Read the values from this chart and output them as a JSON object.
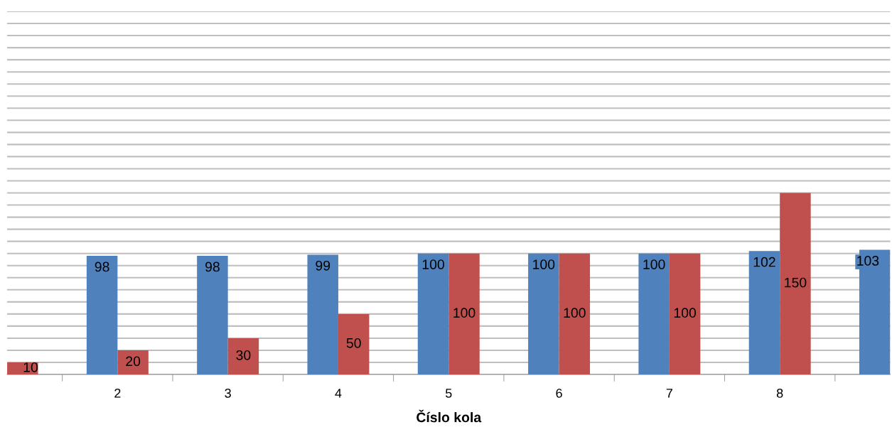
{
  "chart_data": {
    "type": "bar",
    "xlabel": "Číslo kola",
    "categories": [
      null,
      "2",
      "3",
      "4",
      "5",
      "6",
      "7",
      "8",
      null
    ],
    "series": [
      {
        "color": "#4f81bd",
        "values": [
          null,
          98,
          98,
          99,
          100,
          100,
          100,
          102,
          103
        ]
      },
      {
        "color": "#c0504d",
        "values": [
          10,
          20,
          30,
          50,
          100,
          100,
          100,
          150,
          null
        ]
      }
    ],
    "data_labels": true,
    "ylim": [
      0,
      300
    ],
    "yticks": [
      {
        "value": 0,
        "label": null
      },
      {
        "value": 10,
        "label": null
      },
      {
        "value": 20,
        "label": null
      },
      {
        "value": 30,
        "label": null
      },
      {
        "value": 40,
        "label": null
      },
      {
        "value": 50,
        "label": null
      },
      {
        "value": 60,
        "label": null
      },
      {
        "value": 70,
        "label": null
      },
      {
        "value": 80,
        "label": null
      },
      {
        "value": 90,
        "label": null
      },
      {
        "value": 100,
        "label": null
      },
      {
        "value": 110,
        "label": null
      },
      {
        "value": 120,
        "label": null
      },
      {
        "value": 130,
        "label": null
      },
      {
        "value": 140,
        "label": null
      },
      {
        "value": 150,
        "label": null
      },
      {
        "value": 160,
        "label": null
      },
      {
        "value": 170,
        "label": null
      },
      {
        "value": 180,
        "label": null
      },
      {
        "value": 190,
        "label": null
      },
      {
        "value": 200,
        "label": null
      },
      {
        "value": 210,
        "label": null
      },
      {
        "value": 220,
        "label": null
      },
      {
        "value": 230,
        "label": null
      },
      {
        "value": 240,
        "label": null
      },
      {
        "value": 250,
        "label": null
      },
      {
        "value": 260,
        "label": null
      },
      {
        "value": 270,
        "label": null
      },
      {
        "value": 280,
        "label": null
      },
      {
        "value": 290,
        "label": null
      },
      {
        "value": 300,
        "label": null
      }
    ],
    "grid": "y",
    "tick_labels": "x"
  }
}
